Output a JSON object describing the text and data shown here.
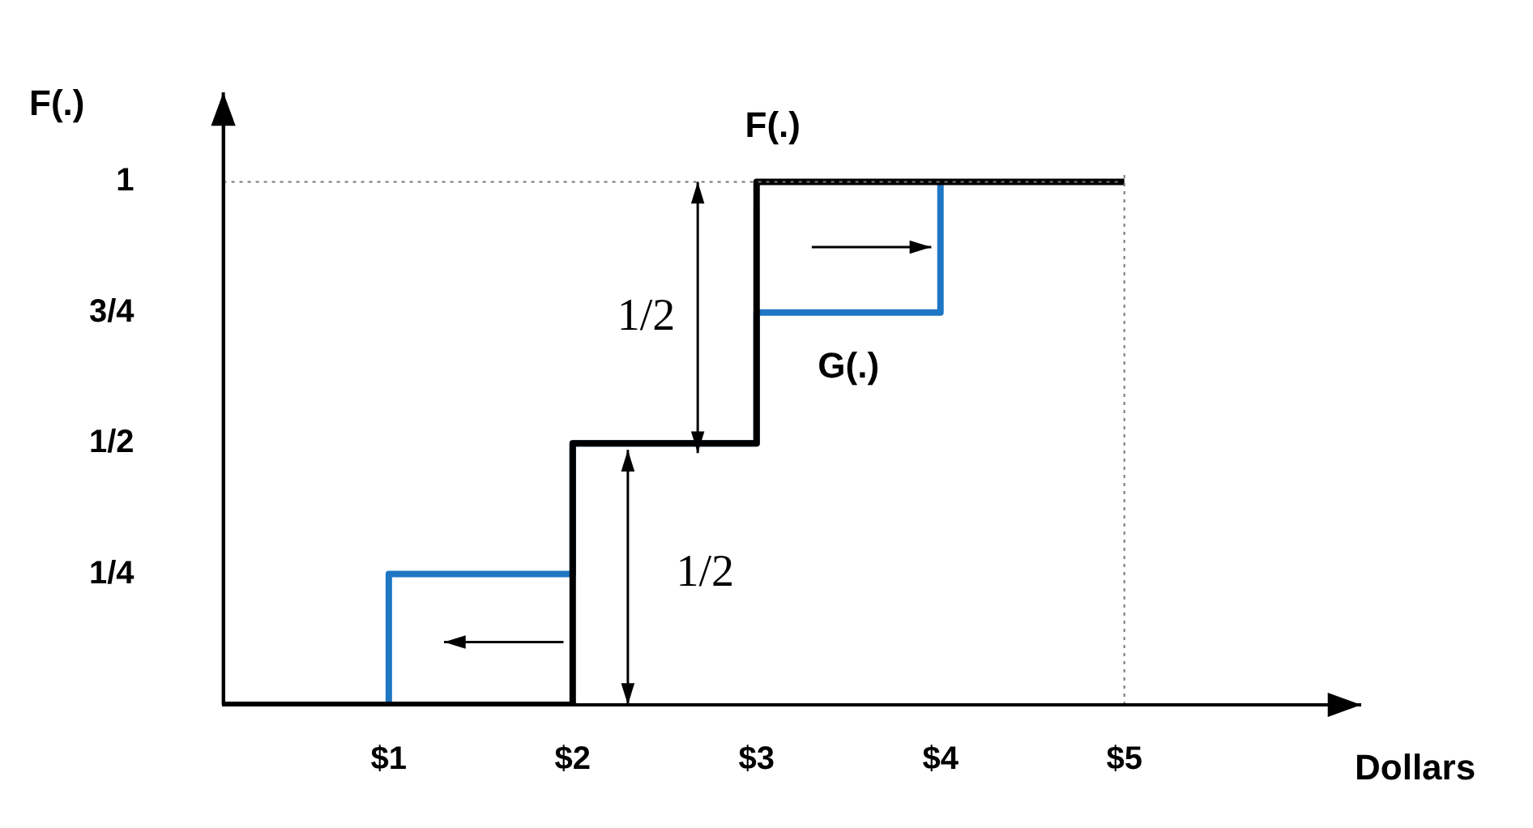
{
  "chart_data": {
    "type": "step",
    "xlabel": "Dollars",
    "ylabel": "F(.)",
    "xlim": [
      0.1,
      6.2
    ],
    "ylim": [
      0,
      1.14
    ],
    "xticks": [
      {
        "value": 1,
        "label": "$1"
      },
      {
        "value": 2,
        "label": "$2"
      },
      {
        "value": 3,
        "label": "$3"
      },
      {
        "value": 4,
        "label": "$4"
      },
      {
        "value": 5,
        "label": "$5"
      }
    ],
    "yticks": [
      {
        "value": 0.25,
        "label": "1/4"
      },
      {
        "value": 0.5,
        "label": "1/2"
      },
      {
        "value": 0.75,
        "label": "3/4"
      },
      {
        "value": 1,
        "label": "1"
      }
    ],
    "series": [
      {
        "name": "G(.)",
        "color": "#1f77c4",
        "x": [
          1,
          1,
          2,
          3,
          4
        ],
        "values": [
          0,
          0.25,
          0.5,
          0.75,
          1
        ]
      },
      {
        "name": "F(.)",
        "color": "#000000",
        "x": [
          0.1,
          2,
          3,
          5
        ],
        "values": [
          0,
          0.5,
          1,
          1
        ]
      }
    ],
    "ref_lines": [
      {
        "axis": "y",
        "value": 1,
        "color": "#777777",
        "line_style": "dotted"
      },
      {
        "axis": "x",
        "value": 5,
        "color": "#777777",
        "line_style": "dotted"
      }
    ],
    "annotations": [
      "1/2",
      "1/2"
    ],
    "grid": false,
    "legend": false,
    "marker": "none",
    "line_style": "solid"
  }
}
